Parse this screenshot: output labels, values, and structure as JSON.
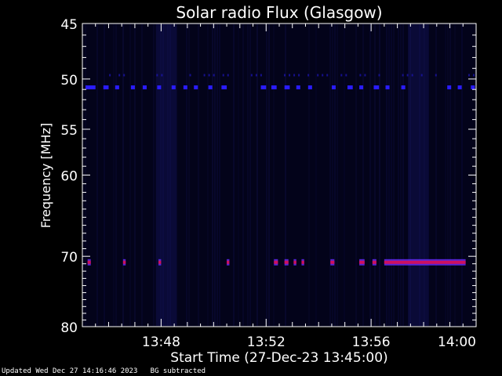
{
  "chart_data": {
    "type": "heatmap",
    "title": "Solar radio Flux (Glasgow)",
    "xlabel": "Start Time (27-Dec-23 13:45:00)",
    "ylabel": "Frequency [MHz]",
    "x_ticks": [
      "13:48",
      "13:52",
      "13:56",
      "14:00"
    ],
    "x_tick_minutes": [
      3,
      7,
      11,
      15
    ],
    "xlim_minutes": [
      0,
      15
    ],
    "y_ticks": [
      45,
      50,
      55,
      60,
      70,
      80
    ],
    "ylim": [
      45,
      80
    ],
    "y_scale": "log",
    "background_color": "#000000",
    "colors": {
      "band_50": "#2a1cff",
      "band_70": "#cc1060",
      "band_70_glow": "#6a2cff",
      "tint": "#0a0a4a"
    },
    "bands": [
      {
        "name": "",
        "frequency": 50.8,
        "segments_minutes": [
          [
            0.12,
            0.5
          ],
          [
            0.8,
            1.0
          ],
          [
            1.25,
            1.4
          ],
          [
            1.85,
            2.0
          ],
          [
            2.3,
            2.45
          ],
          [
            2.85,
            3.0
          ],
          [
            3.4,
            3.55
          ],
          [
            3.85,
            4.0
          ],
          [
            4.25,
            4.4
          ],
          [
            4.8,
            4.95
          ],
          [
            5.3,
            5.5
          ],
          [
            6.8,
            7.0
          ],
          [
            7.2,
            7.4
          ],
          [
            7.7,
            7.9
          ],
          [
            8.15,
            8.3
          ],
          [
            8.6,
            8.75
          ],
          [
            9.5,
            9.65
          ],
          [
            10.1,
            10.3
          ],
          [
            10.55,
            10.7
          ],
          [
            11.1,
            11.3
          ],
          [
            11.55,
            11.7
          ],
          [
            12.15,
            12.3
          ],
          [
            13.9,
            14.05
          ],
          [
            14.3,
            14.45
          ],
          [
            14.8,
            14.95
          ]
        ]
      },
      {
        "name": "",
        "frequency": 70.8,
        "segments_minutes": [
          [
            0.2,
            0.32
          ],
          [
            1.55,
            1.65
          ],
          [
            2.9,
            3.0
          ],
          [
            5.5,
            5.6
          ],
          [
            7.3,
            7.45
          ],
          [
            7.7,
            7.85
          ],
          [
            8.05,
            8.15
          ],
          [
            8.35,
            8.45
          ],
          [
            9.45,
            9.6
          ],
          [
            10.55,
            10.75
          ],
          [
            11.05,
            11.2
          ],
          [
            11.5,
            14.6
          ]
        ]
      }
    ],
    "enhanced_intervals_minutes": [
      [
        2.8,
        3.6
      ],
      [
        12.4,
        13.2
      ]
    ]
  },
  "footer": "Updated Wed Dec 27 14:16:46 2023   BG subtracted"
}
